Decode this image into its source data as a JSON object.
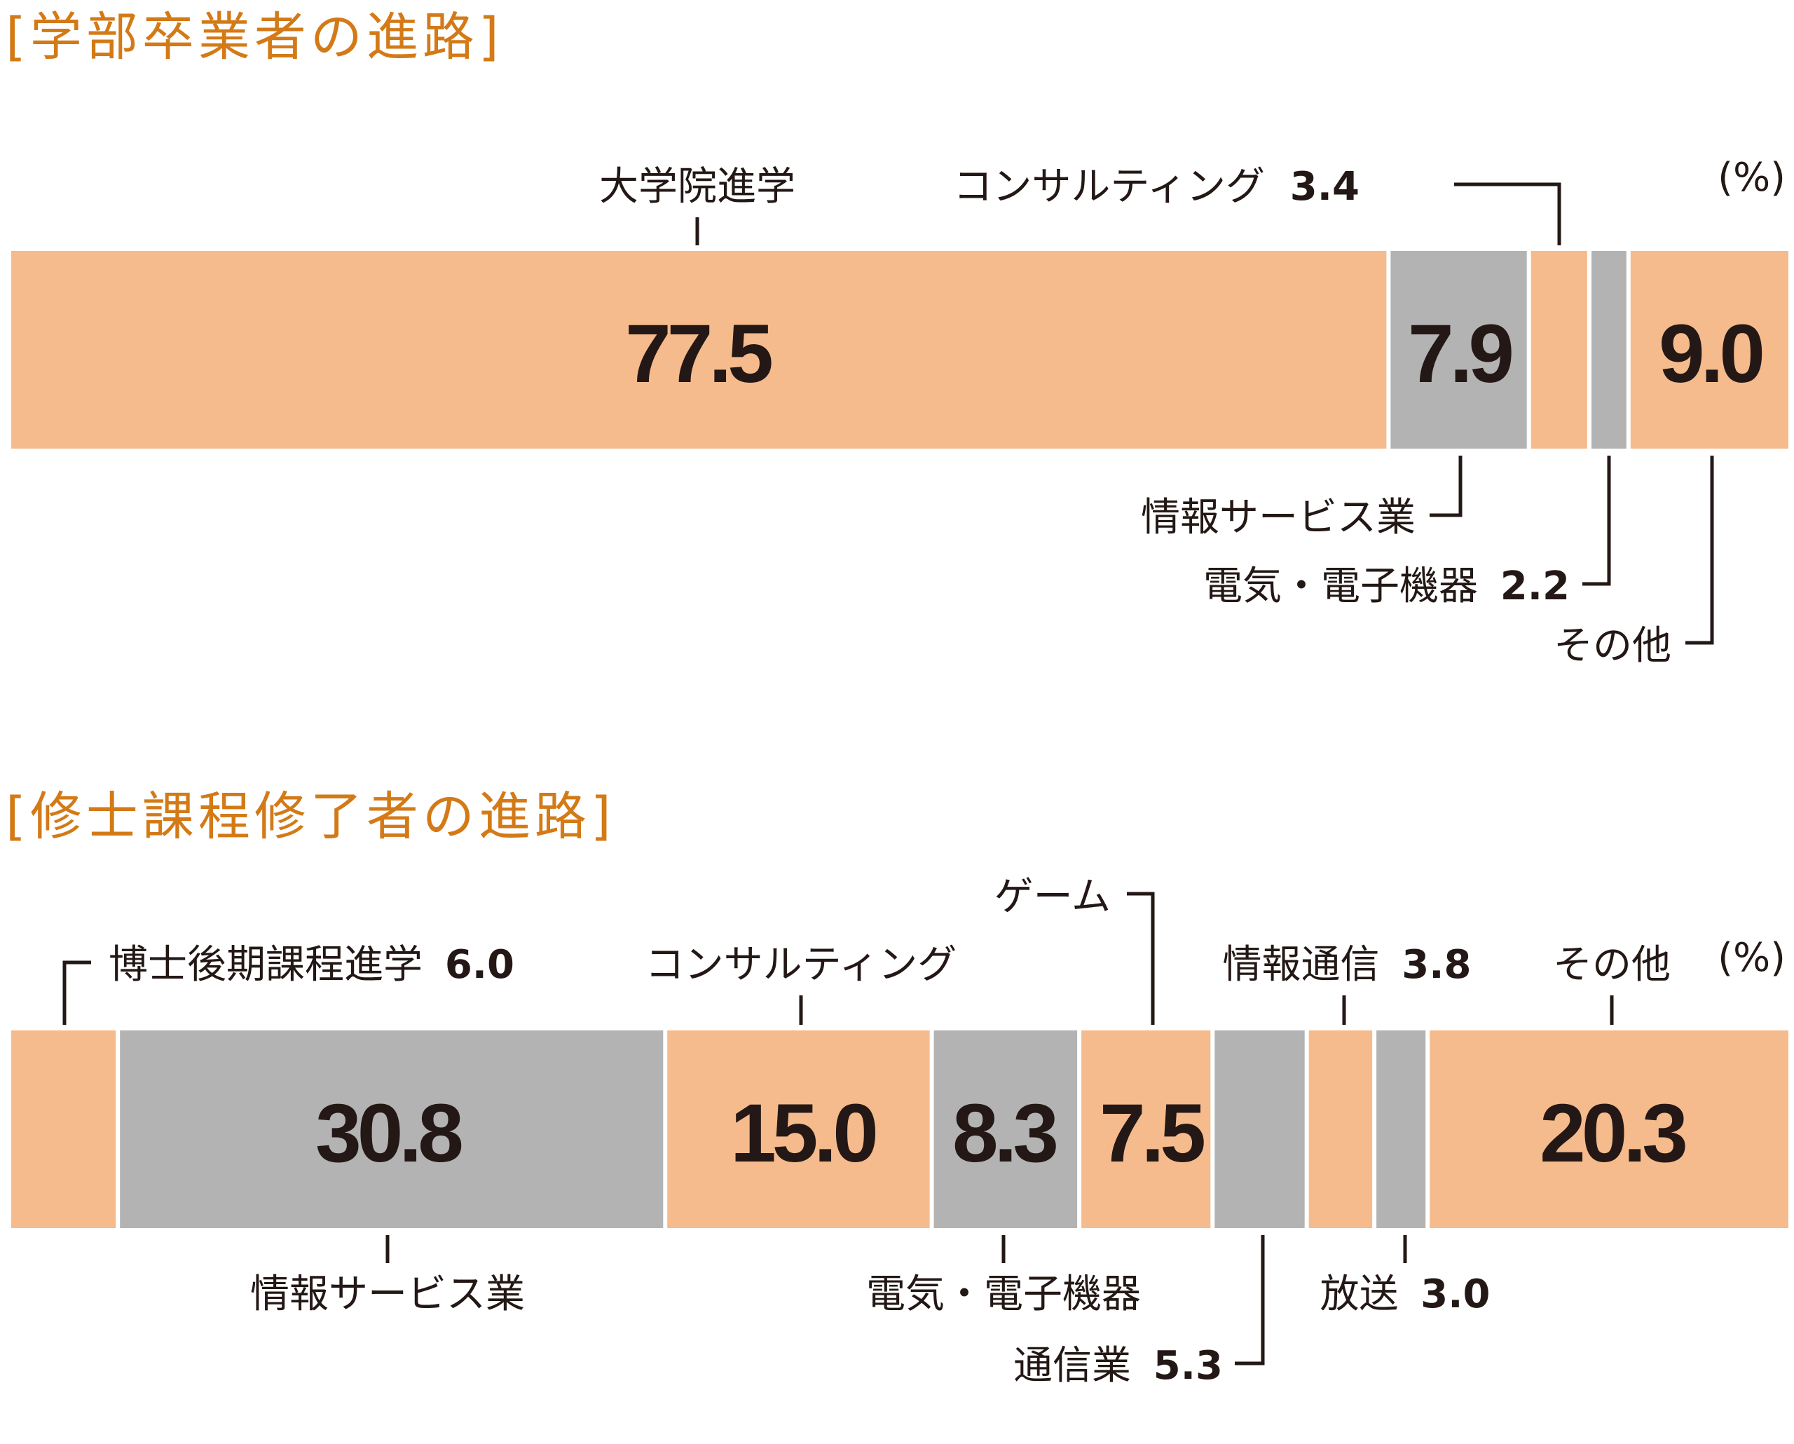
{
  "colors": {
    "orange": "#f5bb8d",
    "gray": "#b3b3b3",
    "title": "#d37a17",
    "text": "#231815"
  },
  "chart_data": [
    {
      "type": "bar",
      "title": "[学部卒業者の進路]",
      "unit": "(%)",
      "segments": [
        {
          "name": "大学院進学",
          "value": 77.5,
          "value_label": "77.5",
          "color": "orange"
        },
        {
          "name": "情報サービス業",
          "value": 7.9,
          "value_label": "7.9",
          "color": "gray"
        },
        {
          "name": "コンサルティング",
          "value": 3.4,
          "value_label": "3.4",
          "color": "orange"
        },
        {
          "name": "電気・電子機器",
          "value": 2.2,
          "value_label": "2.2",
          "color": "gray"
        },
        {
          "name": "その他",
          "value": 9.0,
          "value_label": "9.0",
          "color": "orange"
        }
      ]
    },
    {
      "type": "bar",
      "title": "[修士課程修了者の進路]",
      "unit": "(%)",
      "segments": [
        {
          "name": "博士後期課程進学",
          "value": 6.0,
          "value_label": "6.0",
          "color": "orange"
        },
        {
          "name": "情報サービス業",
          "value": 30.8,
          "value_label": "30.8",
          "color": "gray"
        },
        {
          "name": "コンサルティング",
          "value": 15.0,
          "value_label": "15.0",
          "color": "orange"
        },
        {
          "name": "電気・電子機器",
          "value": 8.3,
          "value_label": "8.3",
          "color": "gray"
        },
        {
          "name": "ゲーム",
          "value": 7.5,
          "value_label": "7.5",
          "color": "orange"
        },
        {
          "name": "通信業",
          "value": 5.3,
          "value_label": "5.3",
          "color": "gray"
        },
        {
          "name": "情報通信",
          "value": 3.8,
          "value_label": "3.8",
          "color": "orange"
        },
        {
          "name": "放送",
          "value": 3.0,
          "value_label": "3.0",
          "color": "gray"
        },
        {
          "name": "その他",
          "value": 20.3,
          "value_label": "20.3",
          "color": "orange"
        }
      ]
    }
  ]
}
